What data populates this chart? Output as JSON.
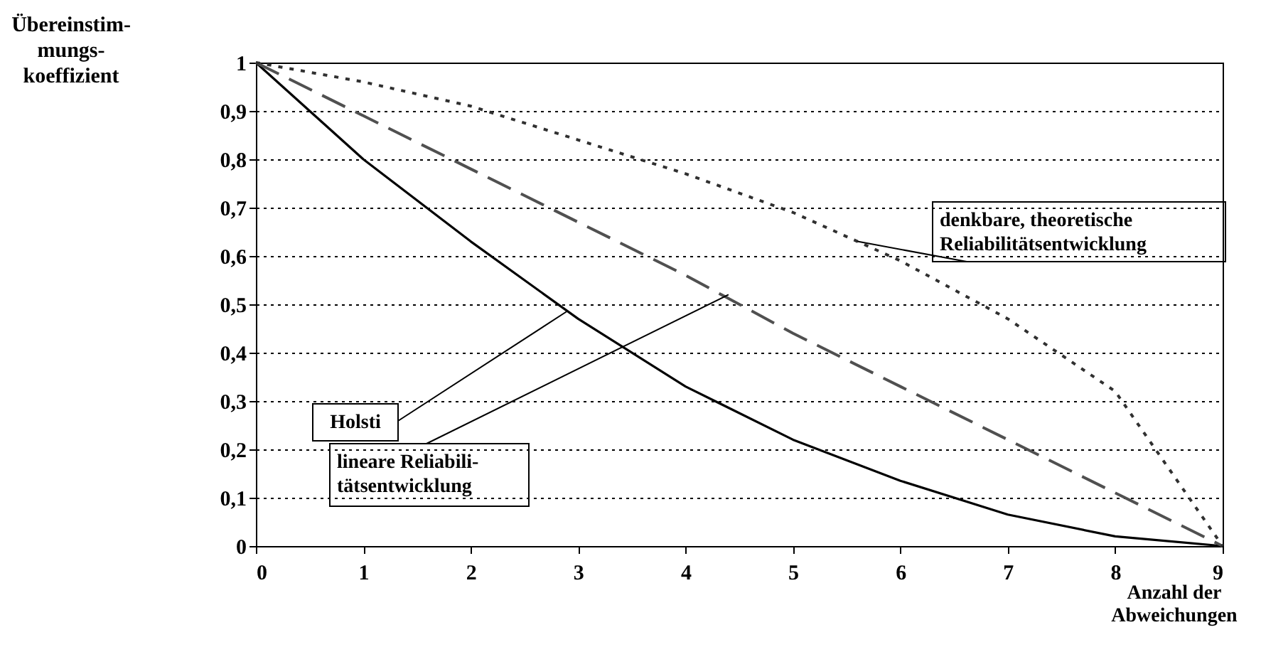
{
  "chart_data": {
    "type": "line",
    "ylabel": "Übereinstim-\nmungs-\nkoeffizient",
    "xlabel": "Anzahl der\nAbweichungen",
    "x": [
      0,
      1,
      2,
      3,
      4,
      5,
      6,
      7,
      8,
      9
    ],
    "series": [
      {
        "color": "#000000",
        "line_style": "solid",
        "values": [
          1,
          0.8,
          0.63,
          0.47,
          0.33,
          0.22,
          0.135,
          0.065,
          0.02,
          0
        ]
      },
      {
        "color": "#505050",
        "line_style": "dashed",
        "values": [
          1,
          0.89,
          0.78,
          0.67,
          0.56,
          0.44,
          0.33,
          0.22,
          0.11,
          0
        ]
      },
      {
        "color": "#303030",
        "line_style": "dotted",
        "values": [
          1,
          0.96,
          0.91,
          0.84,
          0.77,
          0.69,
          0.59,
          0.47,
          0.32,
          0
        ]
      }
    ],
    "xlim": [
      0,
      9
    ],
    "xticks": [
      0,
      1,
      2,
      3,
      4,
      5,
      6,
      7,
      8,
      9
    ],
    "ylim": [
      0,
      1
    ],
    "yticks": [
      0,
      {
        "value": 0.1,
        "label": "0,1"
      },
      {
        "value": 0.2,
        "label": "0,2"
      },
      {
        "value": 0.3,
        "label": "0,3"
      },
      {
        "value": 0.4,
        "label": "0,4"
      },
      {
        "value": 0.5,
        "label": "0,5"
      },
      {
        "value": 0.6,
        "label": "0,6"
      },
      {
        "value": 0.7,
        "label": "0,7"
      },
      {
        "value": 0.8,
        "label": "0,8"
      },
      {
        "value": 0.9,
        "label": "0,9"
      },
      1
    ],
    "grid": "y",
    "marker": "none",
    "annotations": [
      {
        "text": "Holsti",
        "x": 2.9,
        "y": 0.486
      },
      {
        "text": "lineare Reliabili-\ntätsentwicklung",
        "x": 4.4,
        "y": 0.52
      },
      {
        "text": "denkbare, theoretische\nReliabilitätsentwicklung",
        "x": 5.6,
        "y": 0.63
      }
    ]
  }
}
